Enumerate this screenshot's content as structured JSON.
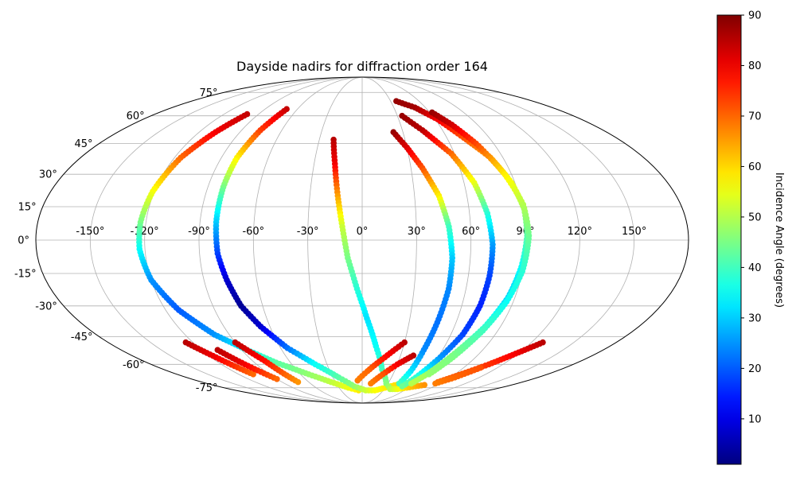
{
  "chart_data": {
    "type": "scatter",
    "projection": "mollweide",
    "title": "Dayside nadirs for diffraction order 164",
    "grid": true,
    "longitude_ticks": [
      -150,
      -120,
      -90,
      -60,
      -30,
      0,
      30,
      60,
      90,
      120,
      150
    ],
    "longitude_tick_labels": [
      "-150°",
      "-120°",
      "-90°",
      "-60°",
      "-30°",
      "0°",
      "30°",
      "60°",
      "90°",
      "120°",
      "150°"
    ],
    "latitude_ticks": [
      -75,
      -60,
      -45,
      -30,
      -15,
      0,
      15,
      30,
      45,
      60,
      75
    ],
    "latitude_tick_labels": [
      "-75°",
      "-60°",
      "-45°",
      "-30°",
      "-15°",
      "0°",
      "15°",
      "30°",
      "45°",
      "60°",
      "75°"
    ],
    "colorbar": {
      "label": "Incidence Angle (degrees)",
      "colormap": "jet",
      "range": [
        1,
        90
      ],
      "ticks": [
        10,
        20,
        30,
        40,
        50,
        60,
        70,
        80,
        90
      ]
    },
    "series": [
      {
        "points": [
          [
            -100,
            61,
            84
          ],
          [
            -108,
            51,
            80
          ],
          [
            -116,
            38,
            70
          ],
          [
            -121,
            22,
            56
          ],
          [
            -123,
            8,
            45
          ],
          [
            -123,
            -4,
            35
          ],
          [
            -120,
            -18,
            25
          ],
          [
            -112,
            -32,
            20
          ],
          [
            -100,
            -44,
            25
          ],
          [
            -86,
            -52,
            35
          ],
          [
            -72,
            -59,
            42
          ],
          [
            -52,
            -66,
            47
          ],
          [
            -35,
            -71,
            51
          ],
          [
            -18,
            -75,
            55
          ],
          [
            -5,
            -77,
            58
          ]
        ]
      },
      {
        "points": [
          [
            -70,
            64,
            84
          ],
          [
            -76,
            52,
            74
          ],
          [
            -80,
            38,
            58
          ],
          [
            -81,
            24,
            45
          ],
          [
            -81,
            8,
            30
          ],
          [
            -80,
            -6,
            18
          ],
          [
            -77,
            -18,
            8
          ],
          [
            -73,
            -30,
            3
          ],
          [
            -66,
            -40,
            8
          ],
          [
            -55,
            -51,
            22
          ],
          [
            -40,
            -60,
            35
          ],
          [
            -24,
            -68,
            42
          ],
          [
            -10,
            -74,
            47
          ],
          [
            5,
            -77,
            52
          ],
          [
            18,
            -77,
            56
          ],
          [
            30,
            -75,
            58
          ],
          [
            45,
            -72,
            60
          ]
        ]
      },
      {
        "points": [
          [
            -20,
            47,
            85
          ],
          [
            -17,
            35,
            80
          ],
          [
            -14,
            20,
            65
          ],
          [
            -11,
            6,
            52
          ],
          [
            -8,
            -8,
            45
          ],
          [
            -3,
            -22,
            38
          ],
          [
            3,
            -36,
            32
          ],
          [
            10,
            -50,
            35
          ],
          [
            18,
            -63,
            40
          ],
          [
            28,
            -72,
            46
          ],
          [
            38,
            -76,
            50
          ],
          [
            48,
            -76,
            55
          ],
          [
            58,
            -75,
            60
          ],
          [
            75,
            -73,
            66
          ]
        ]
      },
      {
        "points": [
          [
            23,
            51,
            88
          ],
          [
            30,
            43,
            82
          ],
          [
            37,
            33,
            72
          ],
          [
            44,
            20,
            58
          ],
          [
            48,
            6,
            40
          ],
          [
            50,
            -8,
            30
          ],
          [
            50,
            -22,
            24
          ],
          [
            48,
            -38,
            22
          ],
          [
            46,
            -52,
            24
          ],
          [
            45,
            -64,
            32
          ],
          [
            43,
            -72,
            40
          ]
        ]
      },
      {
        "points": [
          [
            34,
            60,
            88
          ],
          [
            45,
            52,
            85
          ],
          [
            58,
            40,
            70
          ],
          [
            66,
            26,
            55
          ],
          [
            70,
            12,
            38
          ],
          [
            72,
            -2,
            26
          ],
          [
            72,
            -16,
            18
          ],
          [
            71,
            -30,
            15
          ],
          [
            68,
            -44,
            18
          ],
          [
            62,
            -56,
            25
          ],
          [
            55,
            -68,
            38
          ],
          [
            50,
            -74,
            44
          ]
        ]
      },
      {
        "points": [
          [
            36,
            69,
            88
          ],
          [
            50,
            65,
            87
          ],
          [
            62,
            58,
            80
          ],
          [
            72,
            48,
            72
          ],
          [
            82,
            38,
            65
          ],
          [
            88,
            26,
            55
          ],
          [
            91,
            14,
            48
          ],
          [
            91,
            2,
            42
          ],
          [
            89,
            -12,
            35
          ],
          [
            86,
            -26,
            30
          ],
          [
            80,
            -40,
            38
          ],
          [
            71,
            -54,
            45
          ],
          [
            63,
            -66,
            48
          ],
          [
            57,
            -72,
            50
          ]
        ]
      },
      {
        "points": [
          [
            62,
            62,
            88
          ],
          [
            70,
            55,
            83
          ],
          [
            78,
            45,
            73
          ],
          [
            86,
            30,
            58
          ],
          [
            91,
            16,
            50
          ],
          [
            92,
            2,
            44
          ],
          [
            90,
            -14,
            38
          ],
          [
            86,
            -28,
            35
          ],
          [
            80,
            -42,
            40
          ],
          [
            72,
            -56,
            45
          ],
          [
            65,
            -66,
            47
          ]
        ]
      },
      {
        "points": [
          [
            -125,
            -48,
            85
          ],
          [
            -116,
            -56,
            80
          ],
          [
            -106,
            -66,
            70
          ]
        ]
      },
      {
        "points": [
          [
            -108,
            -52,
            85
          ],
          [
            -100,
            -60,
            80
          ],
          [
            -90,
            -69,
            70
          ]
        ]
      },
      {
        "points": [
          [
            -90,
            -48,
            85
          ],
          [
            -80,
            -58,
            78
          ],
          [
            -72,
            -71,
            66
          ]
        ]
      },
      {
        "points": [
          [
            30,
            -48,
            85
          ],
          [
            18,
            -56,
            78
          ],
          [
            5,
            -64,
            70
          ],
          [
            -5,
            -70,
            68
          ]
        ]
      },
      {
        "points": [
          [
            40,
            -55,
            85
          ],
          [
            30,
            -60,
            80
          ],
          [
            20,
            -66,
            72
          ],
          [
            10,
            -72,
            68
          ]
        ]
      },
      {
        "points": [
          [
            128,
            -48,
            85
          ],
          [
            118,
            -54,
            80
          ],
          [
            108,
            -60,
            75
          ],
          [
            98,
            -65,
            72
          ],
          [
            85,
            -71,
            70
          ]
        ]
      },
      {
        "points": [
          [
            105,
            -62,
            72
          ],
          [
            95,
            -68,
            70
          ],
          [
            85,
            -72,
            68
          ]
        ]
      }
    ]
  }
}
